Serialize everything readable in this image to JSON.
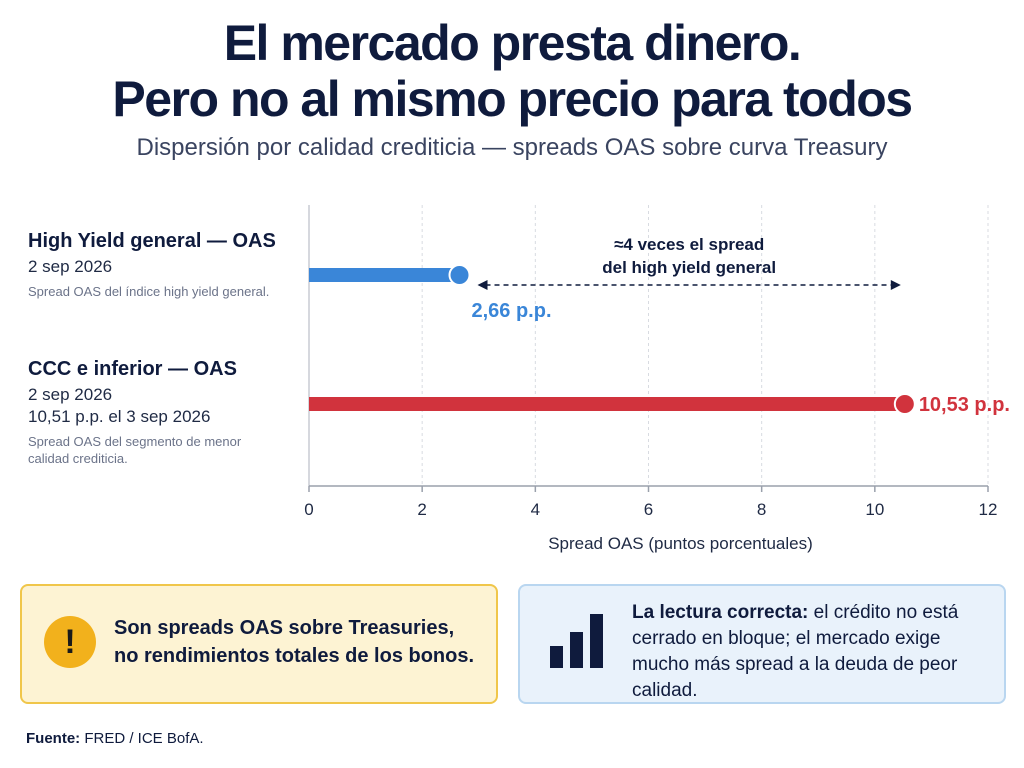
{
  "header": {
    "title_line1": "El mercado presta dinero.",
    "title_line2": "Pero no al mismo precio para todos",
    "subtitle": "Dispersión por calidad crediticia — spreads OAS sobre curva Treasury"
  },
  "rows": [
    {
      "title": "High Yield general — OAS",
      "date": "2 sep 2026",
      "extra": "",
      "description": "Spread OAS del índice high yield general."
    },
    {
      "title": "CCC e inferior — OAS",
      "date": "2 sep 2026",
      "extra": "10,51 p.p. el 3 sep 2026",
      "description": "Spread OAS del segmento de menor calidad crediticia."
    }
  ],
  "chart_data": {
    "type": "bar",
    "orientation": "horizontal",
    "categories": [
      "High Yield general — OAS",
      "CCC e inferior — OAS"
    ],
    "values": [
      2.66,
      10.53
    ],
    "value_labels": [
      "2,66 p.p.",
      "10,53 p.p."
    ],
    "colors": [
      "#3a86d8",
      "#d1333d"
    ],
    "xlabel": "Spread OAS (puntos porcentuales)",
    "xlim": [
      0,
      12
    ],
    "xticks": [
      0,
      2,
      4,
      6,
      8,
      10,
      12
    ],
    "grid": true,
    "annotation": {
      "line1": "≈4 veces el spread",
      "line2": "del high yield general",
      "from": 2.66,
      "to": 10.53
    }
  },
  "cards": {
    "warning": {
      "icon": "exclamation-icon",
      "text_line1": "Son spreads OAS sobre Treasuries,",
      "text_line2": "no rendimientos totales de los bonos."
    },
    "info": {
      "icon": "bar-chart-icon",
      "bold": "La lectura correcta:",
      "text": "el crédito no está cerrado en bloque; el mercado exige mucho más spread a la deuda de peor calidad."
    }
  },
  "source": {
    "label": "Fuente:",
    "text": "FRED / ICE BofA."
  }
}
